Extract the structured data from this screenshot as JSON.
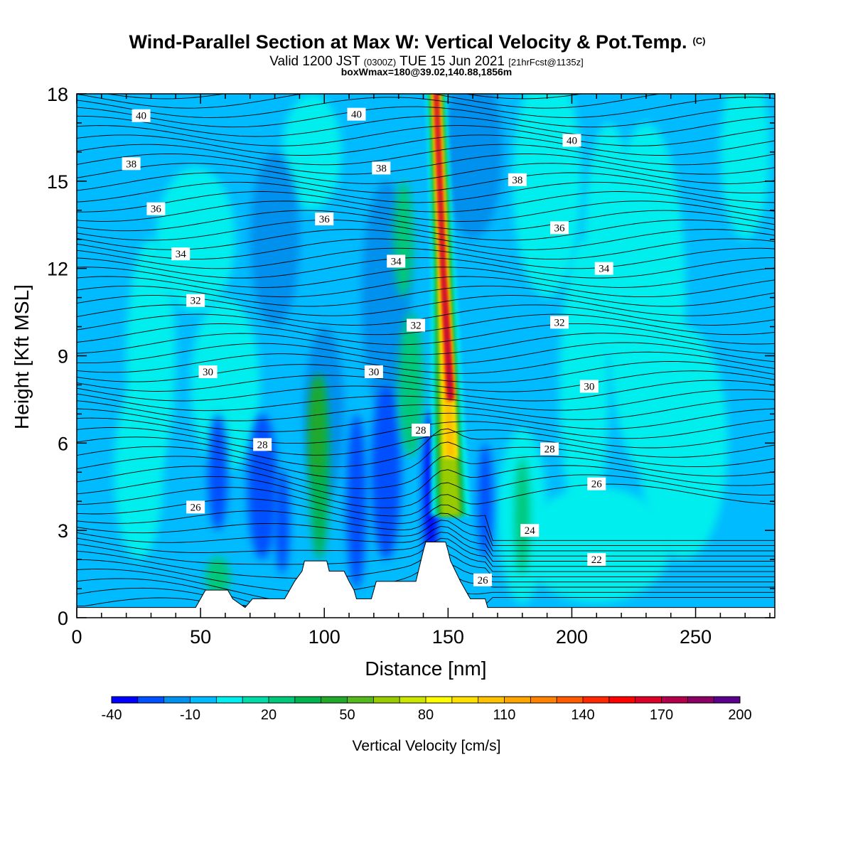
{
  "title": "Wind-Parallel Section at Max W: Vertical Velocity & Pot.Temp.",
  "title_suffix": "(C)",
  "subtitle_parts": [
    "Valid 1200 JST ",
    "(0300Z)",
    " TUE 15 Jun 2021 ",
    "[21hrFcst@1135z]"
  ],
  "subtitle2": "boxWmax=180@39.02,140.88,1856m",
  "chart_data": {
    "type": "heatmap",
    "xlabel": "Distance [nm]",
    "ylabel": "Height [Kft MSL]",
    "xlim": [
      0,
      282
    ],
    "ylim": [
      0,
      18
    ],
    "x_ticks": [
      0,
      50,
      100,
      150,
      200,
      250
    ],
    "y_ticks": [
      0,
      3,
      6,
      9,
      12,
      15,
      18
    ],
    "colorbar": {
      "title": "Vertical Velocity [cm/s]",
      "levels": [
        -40,
        -30,
        -20,
        -10,
        0,
        10,
        20,
        30,
        40,
        50,
        60,
        70,
        80,
        90,
        100,
        110,
        120,
        130,
        140,
        150,
        160,
        170,
        180,
        190,
        200
      ],
      "labels": [
        -40,
        -10,
        20,
        50,
        80,
        110,
        140,
        170,
        200
      ],
      "colors": [
        "#0000ff",
        "#0050ff",
        "#0090ee",
        "#00bbff",
        "#00eeee",
        "#00dca8",
        "#00c87a",
        "#00b44e",
        "#22a82a",
        "#55b81c",
        "#99cc00",
        "#cce600",
        "#ffff00",
        "#ffe000",
        "#ffc200",
        "#ffa500",
        "#ff8200",
        "#ff5a00",
        "#ff2800",
        "#ff0000",
        "#dc0028",
        "#b4004b",
        "#8c0064",
        "#5a008c"
      ]
    },
    "background_color": "#00bbff",
    "updraft": {
      "x_center": 148,
      "peak_w_cm_s": 180,
      "base_kft": 2.5,
      "top_kft": 18
    },
    "wmax_box": {
      "w_cm_s": 180,
      "lat": 39.02,
      "lon": 140.88,
      "height_m": 1856
    },
    "terrain_kft": [
      [
        0,
        0.35
      ],
      [
        48,
        0.35
      ],
      [
        50,
        0.65
      ],
      [
        52,
        0.95
      ],
      [
        61,
        0.95
      ],
      [
        63,
        0.65
      ],
      [
        68,
        0.35
      ],
      [
        71,
        0.65
      ],
      [
        84,
        0.65
      ],
      [
        86,
        0.95
      ],
      [
        88,
        1.25
      ],
      [
        91,
        1.6
      ],
      [
        92,
        1.95
      ],
      [
        101,
        1.95
      ],
      [
        102,
        1.6
      ],
      [
        108,
        1.6
      ],
      [
        110,
        1.25
      ],
      [
        112,
        0.95
      ],
      [
        113,
        0.65
      ],
      [
        119,
        0.65
      ],
      [
        120,
        0.95
      ],
      [
        121,
        1.25
      ],
      [
        137,
        1.25
      ],
      [
        138,
        1.6
      ],
      [
        139,
        1.95
      ],
      [
        140,
        2.3
      ],
      [
        141,
        2.6
      ],
      [
        149,
        2.6
      ],
      [
        150,
        2.3
      ],
      [
        151,
        1.95
      ],
      [
        153,
        1.6
      ],
      [
        155,
        1.25
      ],
      [
        157,
        0.95
      ],
      [
        159,
        0.65
      ],
      [
        165,
        0.65
      ],
      [
        166,
        0.35
      ],
      [
        282,
        0.35
      ]
    ],
    "isentropes_labeled_c": [
      22,
      24,
      26,
      28,
      30,
      32,
      34,
      36,
      38,
      40
    ],
    "contour_labels": [
      {
        "text": "40",
        "x": 26,
        "y": 17.25
      },
      {
        "text": "40",
        "x": 113,
        "y": 17.3
      },
      {
        "text": "40",
        "x": 200,
        "y": 16.4
      },
      {
        "text": "38",
        "x": 22,
        "y": 15.6
      },
      {
        "text": "38",
        "x": 123,
        "y": 15.45
      },
      {
        "text": "38",
        "x": 178,
        "y": 15.05
      },
      {
        "text": "36",
        "x": 32,
        "y": 14.05
      },
      {
        "text": "36",
        "x": 100,
        "y": 13.7
      },
      {
        "text": "36",
        "x": 195,
        "y": 13.4
      },
      {
        "text": "34",
        "x": 42,
        "y": 12.5
      },
      {
        "text": "34",
        "x": 129,
        "y": 12.25
      },
      {
        "text": "34",
        "x": 213,
        "y": 12.0
      },
      {
        "text": "32",
        "x": 48,
        "y": 10.9
      },
      {
        "text": "32",
        "x": 137,
        "y": 10.05
      },
      {
        "text": "32",
        "x": 195,
        "y": 10.15
      },
      {
        "text": "30",
        "x": 53,
        "y": 8.45
      },
      {
        "text": "30",
        "x": 120,
        "y": 8.45
      },
      {
        "text": "30",
        "x": 207,
        "y": 7.95
      },
      {
        "text": "28",
        "x": 75,
        "y": 5.95
      },
      {
        "text": "28",
        "x": 139,
        "y": 6.45
      },
      {
        "text": "28",
        "x": 191,
        "y": 5.8
      },
      {
        "text": "26",
        "x": 48,
        "y": 3.8
      },
      {
        "text": "26",
        "x": 210,
        "y": 4.6
      },
      {
        "text": "26",
        "x": 164,
        "y": 1.3
      },
      {
        "text": "24",
        "x": 183,
        "y": 3.0
      },
      {
        "text": "22",
        "x": 210,
        "y": 2.0
      }
    ]
  }
}
